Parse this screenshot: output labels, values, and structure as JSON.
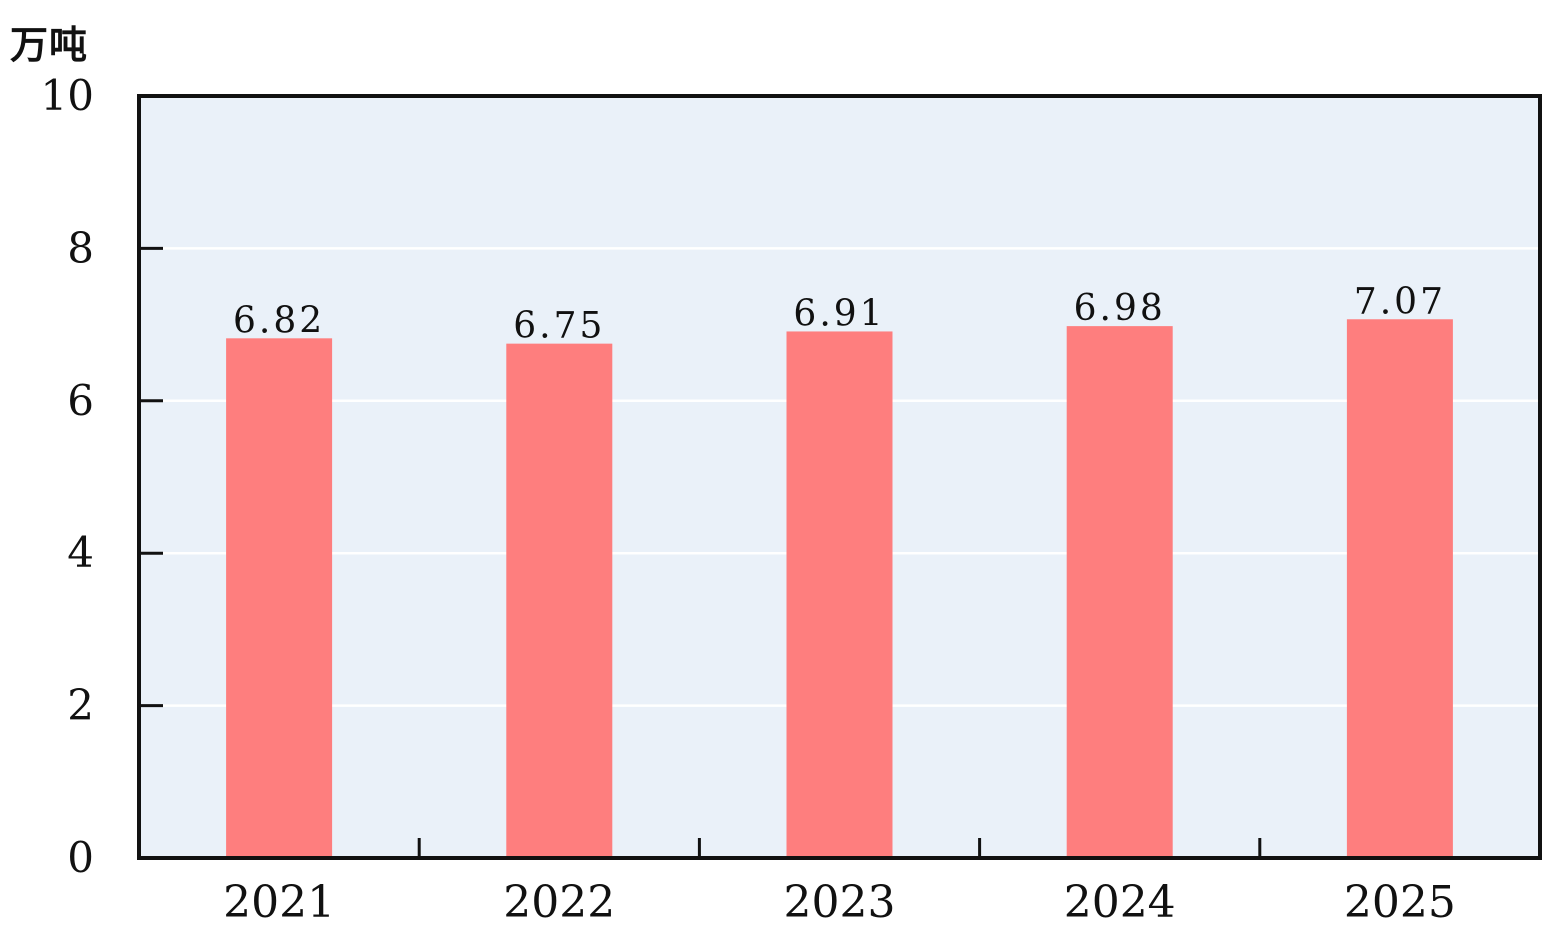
{
  "chart_data": {
    "type": "bar",
    "ylabel": "万吨",
    "categories": [
      "2021",
      "2022",
      "2023",
      "2024",
      "2025"
    ],
    "values": [
      6.82,
      6.75,
      6.91,
      6.98,
      7.07
    ],
    "data_labels": [
      "6.82",
      "6.75",
      "6.91",
      "6.98",
      "7.07"
    ],
    "ylim": [
      0,
      10
    ],
    "yticks": [
      0,
      2,
      4,
      6,
      8,
      10
    ],
    "ytick_labels": [
      "0",
      "2",
      "4",
      "6",
      "8",
      "10"
    ],
    "grid": true,
    "legend": "none",
    "colors": {
      "bar": "#fe7e7e",
      "plot_background": "#eaf1f9",
      "gridline": "#ffffff",
      "axis": "#111111"
    }
  }
}
